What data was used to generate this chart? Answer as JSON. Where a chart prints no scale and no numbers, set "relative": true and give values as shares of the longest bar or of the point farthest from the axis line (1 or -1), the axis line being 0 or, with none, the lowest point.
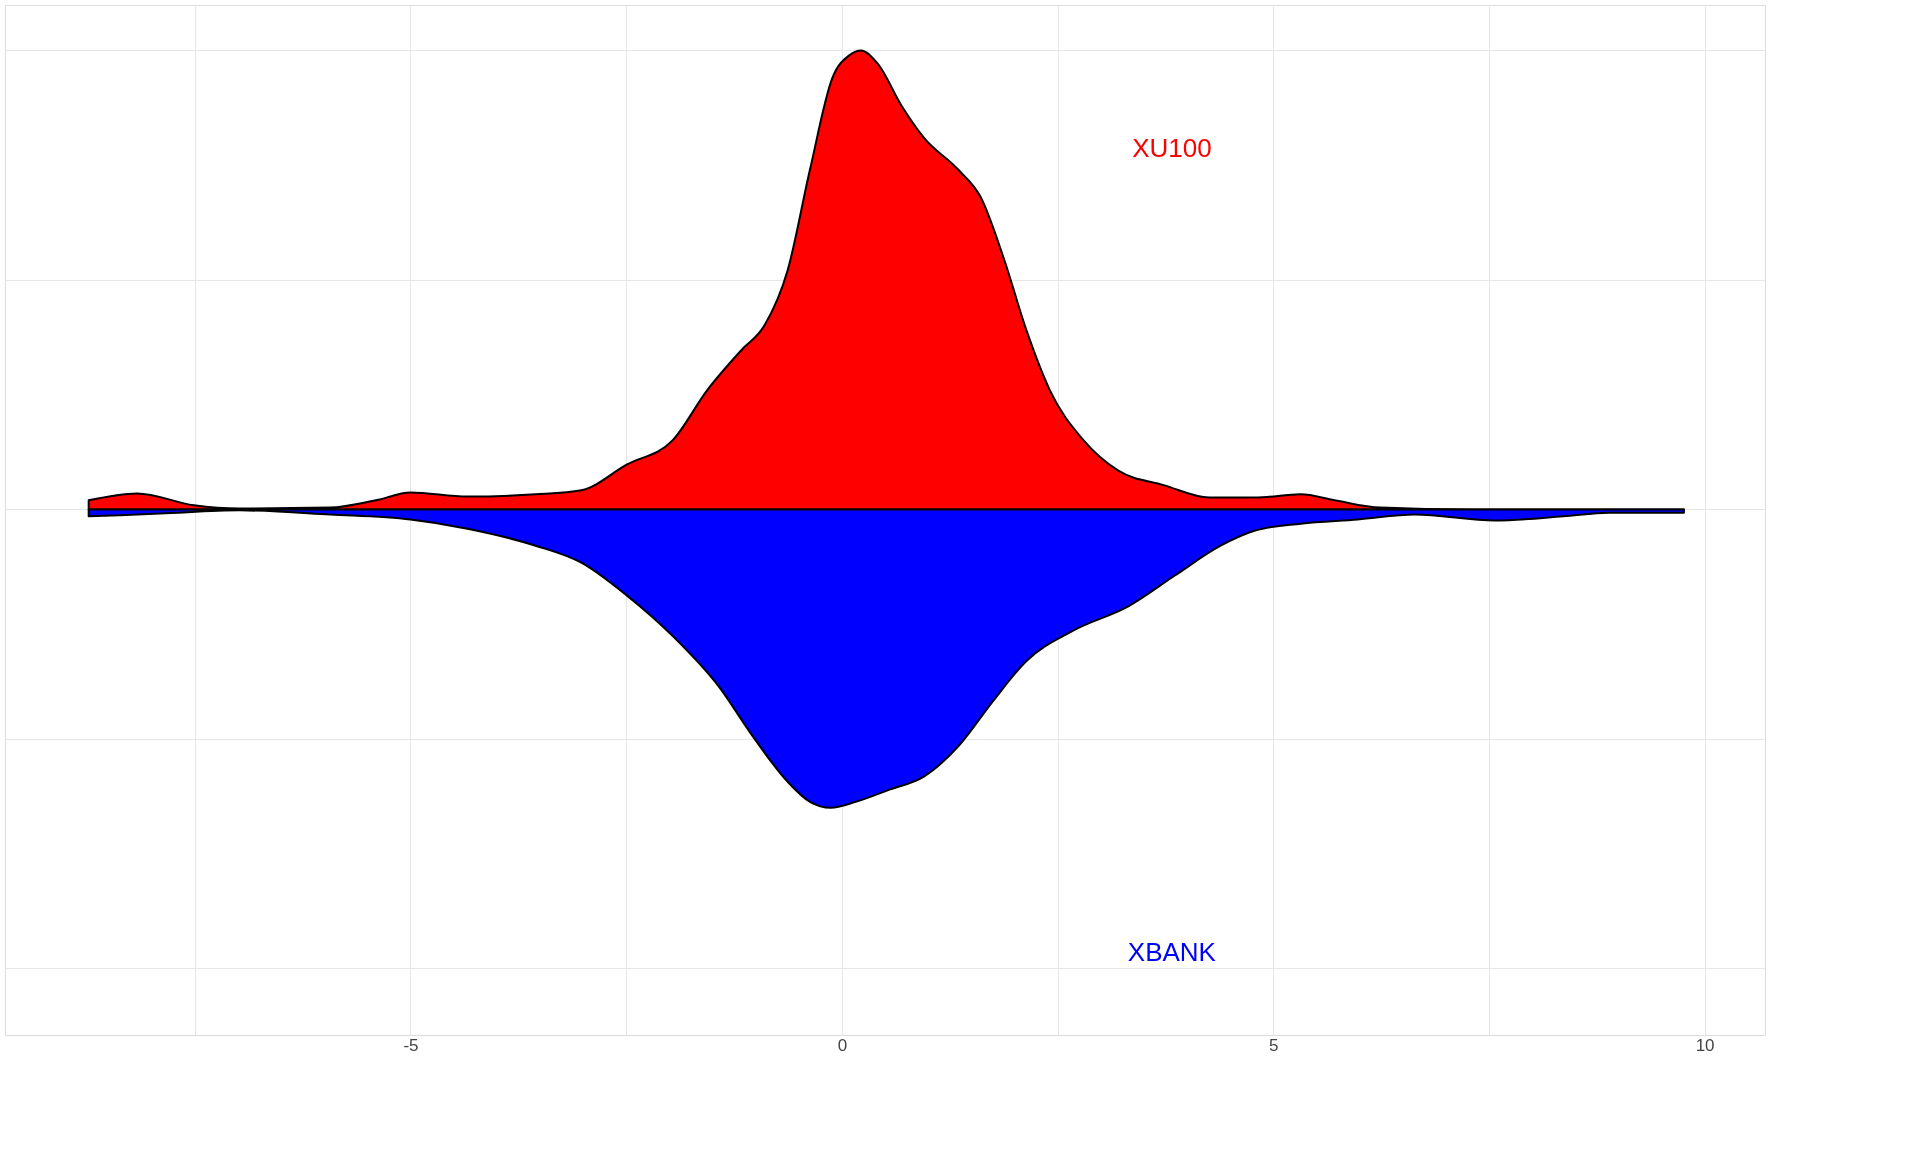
{
  "chart_data": {
    "type": "area",
    "relative": true,
    "xlim": [
      -9.7,
      10.7
    ],
    "xticks": [
      {
        "value": -7.5,
        "label": null
      },
      -5,
      {
        "value": -2.5,
        "label": null
      },
      0,
      {
        "value": 2.5,
        "label": null
      },
      5,
      {
        "value": 7.5,
        "label": null
      },
      10
    ],
    "grid": true,
    "tick_labels": "x",
    "series": [
      {
        "name": "XU100",
        "color": "#ff0000",
        "x": [
          -8.73,
          -8.17,
          -7.51,
          -6.98,
          -5.93,
          -5.4,
          -5.0,
          -4.34,
          -3.55,
          -3.02,
          -2.49,
          -1.96,
          -1.56,
          -1.16,
          -0.9,
          -0.63,
          -0.37,
          -0.11,
          0.09,
          0.22,
          0.42,
          0.69,
          0.95,
          1.35,
          1.61,
          1.88,
          2.14,
          2.41,
          2.8,
          3.2,
          3.73,
          4.26,
          4.79,
          5.32,
          5.71,
          6.24,
          7.3,
          9.76
        ],
        "values": [
          0.02,
          0.035,
          0.009,
          0.002,
          0.004,
          0.02,
          0.037,
          0.028,
          0.033,
          0.042,
          0.098,
          0.151,
          0.26,
          0.348,
          0.4,
          0.52,
          0.74,
          0.94,
          0.99,
          1.0,
          0.97,
          0.88,
          0.81,
          0.74,
          0.68,
          0.545,
          0.39,
          0.26,
          0.151,
          0.085,
          0.053,
          0.026,
          0.026,
          0.033,
          0.02,
          0.004,
          0,
          0
        ]
      },
      {
        "name": "XBANK",
        "color": "#0000ff",
        "x": [
          -8.73,
          -7.9,
          -6.98,
          -5.93,
          -5.0,
          -4.34,
          -3.55,
          -3.02,
          -2.49,
          -1.96,
          -1.43,
          -1.03,
          -0.63,
          -0.37,
          -0.13,
          0.16,
          0.56,
          0.95,
          1.35,
          1.75,
          2.14,
          2.67,
          3.33,
          3.86,
          4.39,
          4.79,
          5.32,
          5.98,
          6.64,
          7.57,
          8.36,
          8.89,
          9.76
        ],
        "values": [
          -0.015,
          -0.009,
          -0.002,
          -0.011,
          -0.022,
          -0.042,
          -0.079,
          -0.116,
          -0.188,
          -0.276,
          -0.385,
          -0.495,
          -0.593,
          -0.637,
          -0.65,
          -0.637,
          -0.61,
          -0.582,
          -0.516,
          -0.418,
          -0.33,
          -0.265,
          -0.21,
          -0.144,
          -0.079,
          -0.046,
          -0.031,
          -0.022,
          -0.011,
          -0.024,
          -0.015,
          -0.007,
          -0.007
        ]
      }
    ]
  }
}
